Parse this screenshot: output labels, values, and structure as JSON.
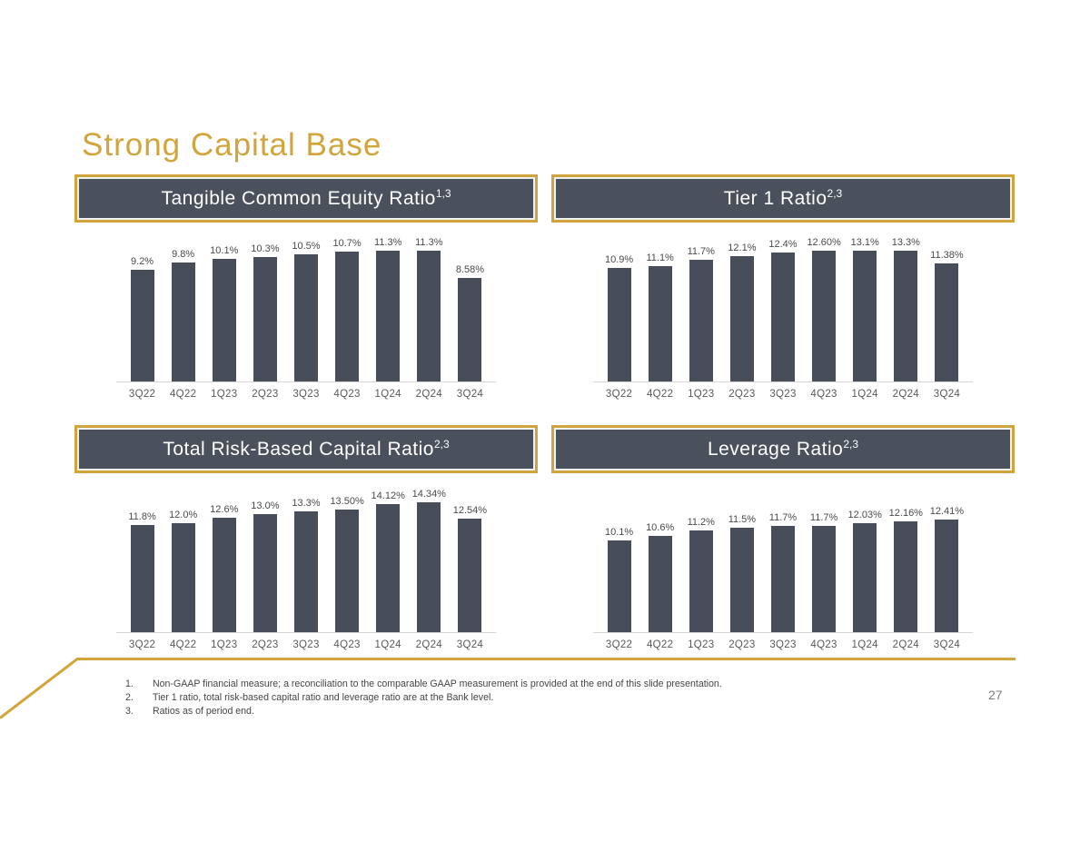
{
  "slide": {
    "title": "Strong Capital Base",
    "page_number": "27"
  },
  "colors": {
    "accent_gold": "#D2A43C",
    "header_slate": "#4A505C",
    "bar_slate": "#474D59"
  },
  "chart_data": [
    {
      "type": "bar",
      "title": "Tangible Common Equity Ratio",
      "title_superscript": "1,3",
      "categories": [
        "3Q22",
        "4Q22",
        "1Q23",
        "2Q23",
        "3Q23",
        "4Q23",
        "1Q24",
        "2Q24",
        "3Q24"
      ],
      "values": [
        9.2,
        9.8,
        10.1,
        10.3,
        10.5,
        10.7,
        11.3,
        11.3,
        8.58
      ],
      "value_labels": [
        "9.2%",
        "9.8%",
        "10.1%",
        "10.3%",
        "10.5%",
        "10.7%",
        "11.3%",
        "11.3%",
        "8.58%"
      ],
      "xlabel": "",
      "ylabel": "",
      "ylim": [
        0,
        12
      ],
      "grid": false,
      "legend": false
    },
    {
      "type": "bar",
      "title": "Tier 1 Ratio",
      "title_superscript": "2,3",
      "categories": [
        "3Q22",
        "4Q22",
        "1Q23",
        "2Q23",
        "3Q23",
        "4Q23",
        "1Q24",
        "2Q24",
        "3Q24"
      ],
      "values": [
        10.9,
        11.1,
        11.7,
        12.1,
        12.4,
        12.6,
        13.1,
        13.3,
        11.38
      ],
      "value_labels": [
        "10.9%",
        "11.1%",
        "11.7%",
        "12.1%",
        "12.4%",
        "12.60%",
        "13.1%",
        "13.3%",
        "11.38%"
      ],
      "xlabel": "",
      "ylabel": "",
      "ylim": [
        0,
        14
      ],
      "grid": false,
      "legend": false
    },
    {
      "type": "bar",
      "title": "Total Risk-Based Capital Ratio",
      "title_superscript": "2,3",
      "categories": [
        "3Q22",
        "4Q22",
        "1Q23",
        "2Q23",
        "3Q23",
        "4Q23",
        "1Q24",
        "2Q24",
        "3Q24"
      ],
      "values": [
        11.8,
        12.0,
        12.6,
        13.0,
        13.3,
        13.5,
        14.12,
        14.34,
        12.54
      ],
      "value_labels": [
        "11.8%",
        "12.0%",
        "12.6%",
        "13.0%",
        "13.3%",
        "13.50%",
        "14.12%",
        "14.34%",
        "12.54%"
      ],
      "xlabel": "",
      "ylabel": "",
      "ylim": [
        0,
        16
      ],
      "grid": false,
      "legend": false
    },
    {
      "type": "bar",
      "title": "Leverage Ratio",
      "title_superscript": "2,3",
      "categories": [
        "3Q22",
        "4Q22",
        "1Q23",
        "2Q23",
        "3Q23",
        "4Q23",
        "1Q24",
        "2Q24",
        "3Q24"
      ],
      "values": [
        10.1,
        10.6,
        11.2,
        11.5,
        11.7,
        11.7,
        12.03,
        12.16,
        12.41
      ],
      "value_labels": [
        "10.1%",
        "10.6%",
        "11.2%",
        "11.5%",
        "11.7%",
        "11.7%",
        "12.03%",
        "12.16%",
        "12.41%"
      ],
      "xlabel": "",
      "ylabel": "",
      "ylim": [
        0,
        16
      ],
      "grid": false,
      "legend": false
    }
  ],
  "footnotes": [
    {
      "num": "1.",
      "text": "Non-GAAP financial measure; a reconciliation to the comparable GAAP measurement is provided at the end of this slide presentation."
    },
    {
      "num": "2.",
      "text": "Tier 1 ratio, total risk-based capital ratio and leverage ratio are at the Bank level."
    },
    {
      "num": "3.",
      "text": "Ratios as of period end."
    }
  ]
}
